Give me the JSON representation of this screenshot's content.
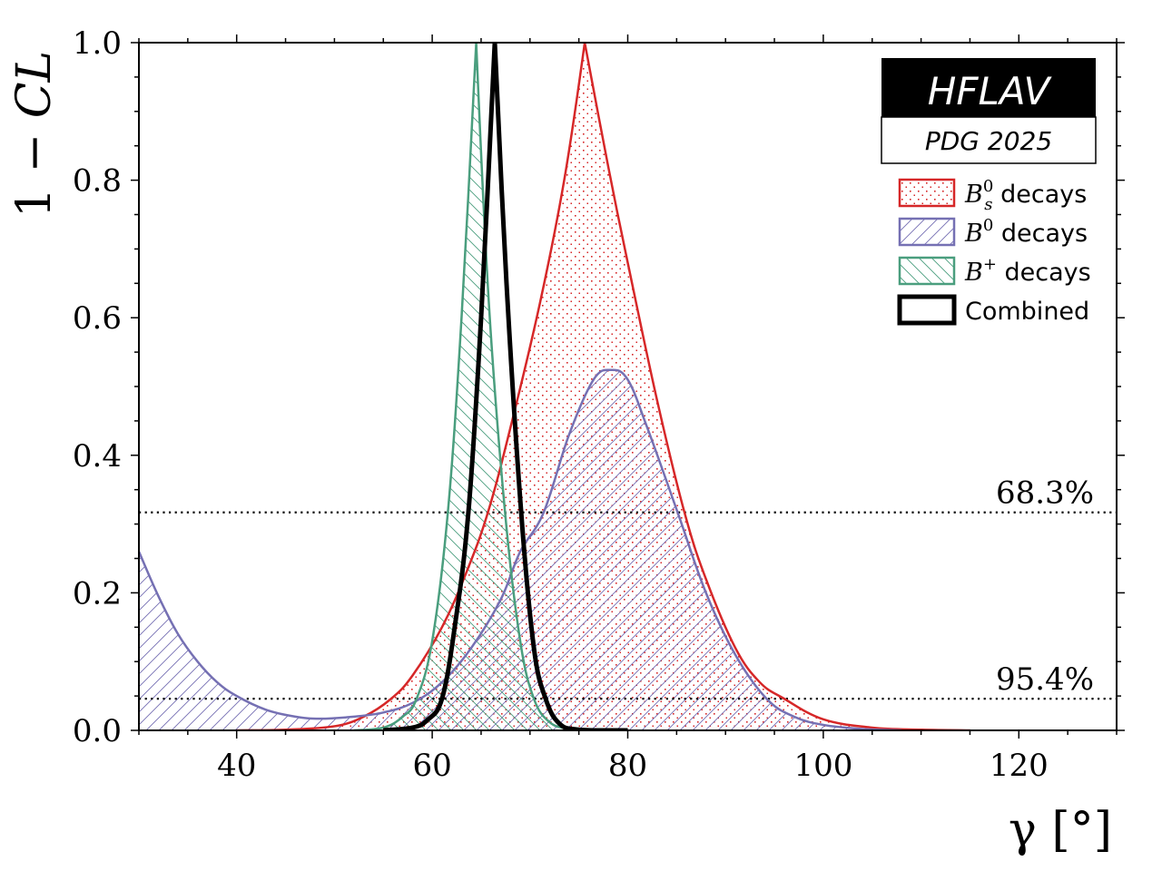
{
  "chart_data": {
    "type": "line",
    "title": "",
    "xlabel": "γ [°]",
    "ylabel_prefix": "1 − ",
    "ylabel_italic": "CL",
    "xlim": [
      30,
      130
    ],
    "ylim": [
      0,
      1
    ],
    "xticks": [
      40,
      60,
      80,
      100,
      120
    ],
    "xtick_labels": [
      "40",
      "60",
      "80",
      "100",
      "120"
    ],
    "yticks": [
      0,
      0.2,
      0.4,
      0.6,
      0.8,
      1.0
    ],
    "ytick_labels": [
      "0.0",
      "0.2",
      "0.4",
      "0.6",
      "0.8",
      "1.0"
    ],
    "grid": false,
    "legend_placement": "top-right",
    "badge": {
      "title": "HFLAV",
      "subtitle": "PDG 2025"
    },
    "thresholds": [
      {
        "label": "68.3%",
        "value": 0.317
      },
      {
        "label": "95.4%",
        "value": 0.046
      }
    ],
    "series": [
      {
        "name": "Bs0 decays",
        "legend_base": "B",
        "legend_sup": "0",
        "legend_sub": "s",
        "legend_text": "decays",
        "color": "#d62728",
        "fill": "dots",
        "x": [
          40,
          45,
          50,
          53,
          55.8,
          58,
          61,
          63.5,
          65.7,
          68,
          71,
          73.5,
          75.6,
          78,
          80,
          83,
          85.8,
          88,
          91,
          93.5,
          96,
          100,
          105,
          110,
          115
        ],
        "y": [
          0,
          0.001,
          0.006,
          0.02,
          0.046,
          0.08,
          0.15,
          0.23,
          0.317,
          0.44,
          0.62,
          0.8,
          1.0,
          0.82,
          0.68,
          0.48,
          0.317,
          0.22,
          0.12,
          0.07,
          0.046,
          0.016,
          0.004,
          0.001,
          0
        ]
      },
      {
        "name": "B0 decays",
        "legend_base": "B",
        "legend_sup": "0",
        "legend_sub": "",
        "legend_text": "decays",
        "color": "#7570b3",
        "fill": "hatch-forward",
        "x": [
          30,
          32,
          34,
          36,
          38,
          40,
          43,
          46,
          48.5,
          52,
          55,
          58,
          61,
          64,
          67,
          69,
          71.4,
          74,
          76.5,
          78.3,
          80,
          82,
          85.1,
          88,
          91,
          94.2,
          97,
          100,
          104,
          108
        ],
        "y": [
          0.26,
          0.195,
          0.14,
          0.1,
          0.07,
          0.05,
          0.03,
          0.02,
          0.017,
          0.02,
          0.026,
          0.04,
          0.07,
          0.12,
          0.19,
          0.26,
          0.317,
          0.43,
          0.51,
          0.524,
          0.51,
          0.44,
          0.317,
          0.2,
          0.11,
          0.046,
          0.02,
          0.008,
          0.002,
          0
        ]
      },
      {
        "name": "B+ decays",
        "legend_base": "B",
        "legend_sup": "+",
        "legend_sub": "",
        "legend_text": "decays",
        "color": "#4a9e7e",
        "fill": "hatch-back",
        "x": [
          52,
          55,
          57,
          58.4,
          60,
          61.6,
          63,
          64.5,
          65.8,
          67.45,
          69,
          70.4,
          72,
          74,
          76
        ],
        "y": [
          0,
          0.004,
          0.02,
          0.046,
          0.13,
          0.317,
          0.6,
          1.0,
          0.62,
          0.317,
          0.13,
          0.046,
          0.012,
          0.002,
          0
        ]
      },
      {
        "name": "Combined",
        "legend_base": "",
        "legend_sup": "",
        "legend_sub": "",
        "legend_text": "Combined",
        "color": "#000000",
        "fill": "none",
        "x": [
          55,
          58,
          59.5,
          61,
          62.3,
          63.7,
          65,
          66.4,
          67.6,
          69.1,
          70.4,
          71.6,
          73,
          75,
          80
        ],
        "y": [
          0,
          0.004,
          0.015,
          0.046,
          0.15,
          0.317,
          0.6,
          1.0,
          0.65,
          0.317,
          0.12,
          0.046,
          0.01,
          0.001,
          0
        ]
      }
    ]
  }
}
